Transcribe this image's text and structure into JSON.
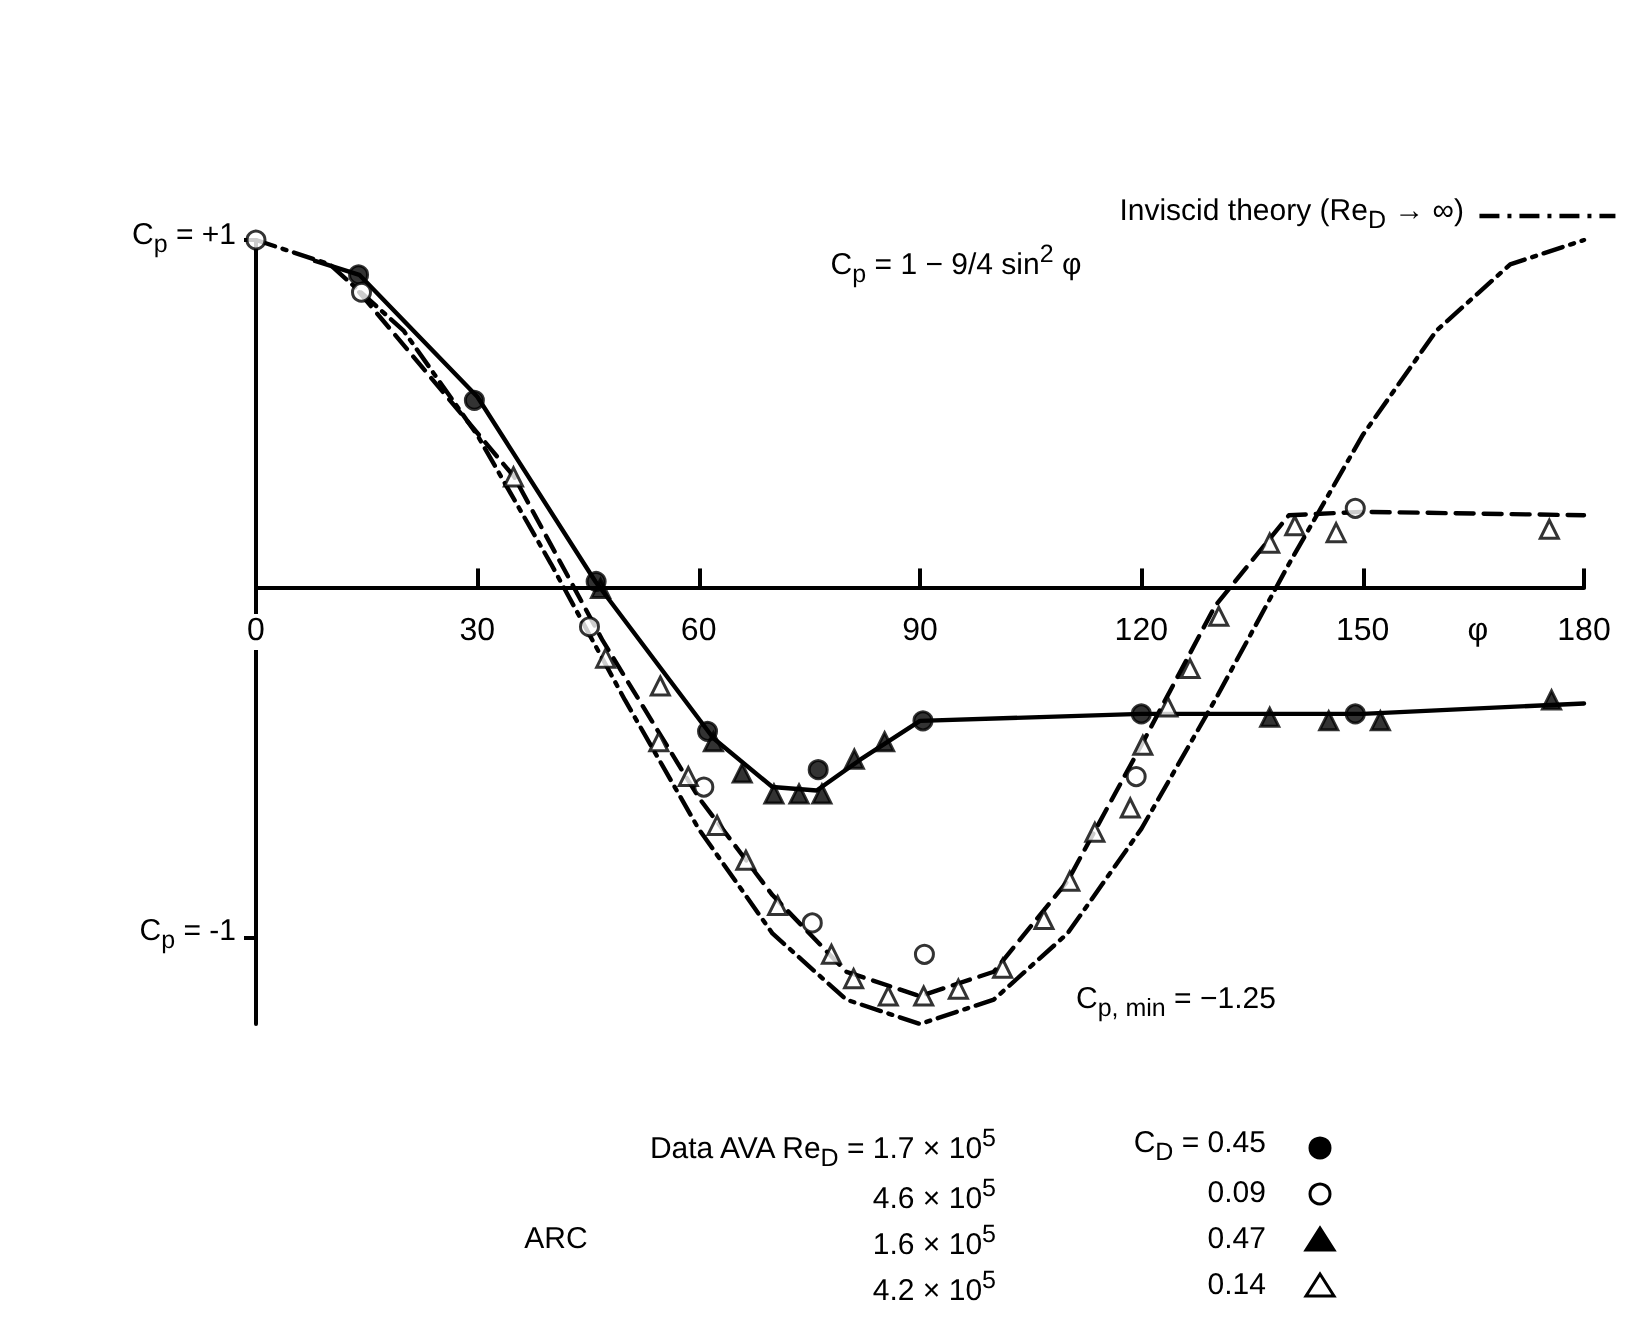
{
  "chart_data": {
    "type": "scatter",
    "xlabel": "φ",
    "xlim": [
      0,
      180
    ],
    "xticks": [
      0,
      30,
      60,
      90,
      120,
      150,
      180
    ],
    "ylim": [
      -1.25,
      1
    ],
    "yticks": [
      {
        "value": 1,
        "label": "C$_{p}$ = +1"
      },
      {
        "value": -1,
        "label": "C$_{p}$ = -1"
      }
    ],
    "grid": false,
    "legend": "bottom",
    "annotations": [
      "C$_{p}$ = 1 − 9/4 sin$^{2}$ φ",
      "C$_{p, min}$ = −1.25",
      "Data AVA Re$_{D}$ = 1.7 × 10$^{5}$",
      "4.6 × 10$^{5}$",
      "ARC",
      "1.6 × 10$^{5}$",
      "4.2 × 10$^{5}$"
    ],
    "series": [
      {
        "type": "line",
        "name": "Inviscid theory (Re$_{D}$ → ∞)",
        "color": "#000000",
        "line_style": "dashdot",
        "marker": "none",
        "x": [
          0,
          10,
          20,
          30,
          40,
          50,
          60,
          70,
          80,
          90,
          100,
          110,
          120,
          130,
          140,
          150,
          160,
          170,
          180
        ],
        "values": [
          1,
          0.93,
          0.74,
          0.44,
          0.07,
          -0.32,
          -0.69,
          -0.99,
          -1.18,
          -1.25,
          -1.18,
          -0.99,
          -0.69,
          -0.32,
          0.07,
          0.44,
          0.74,
          0.93,
          1
        ]
      },
      {
        "type": "line",
        "color": "#000000",
        "line_style": "solid",
        "marker": "none",
        "x": [
          8,
          14,
          30,
          46,
          62,
          70,
          76,
          82,
          90,
          120,
          150,
          180
        ],
        "values": [
          0.94,
          0.9,
          0.55,
          0.02,
          -0.43,
          -0.57,
          -0.58,
          -0.49,
          -0.38,
          -0.36,
          -0.36,
          -0.33
        ]
      },
      {
        "type": "line",
        "color": "#000000",
        "line_style": "dashed",
        "marker": "none",
        "x": [
          14,
          35,
          47,
          60,
          70,
          80,
          90,
          100,
          110,
          120,
          130,
          140,
          150,
          180
        ],
        "values": [
          0.85,
          0.32,
          -0.15,
          -0.6,
          -0.88,
          -1.1,
          -1.17,
          -1.1,
          -0.84,
          -0.45,
          -0.05,
          0.21,
          0.22,
          0.21
        ]
      },
      {
        "name": "C$_{D}$ = 0.45",
        "color": "#000000",
        "marker": "circle",
        "x": [
          13.9,
          29.6,
          46.1,
          61.2,
          76.2,
          90.4,
          120,
          149
        ],
        "values": [
          0.9,
          0.54,
          0.02,
          -0.41,
          -0.52,
          -0.38,
          -0.36,
          -0.36
        ]
      },
      {
        "name": "0.09",
        "color": "#ffffff",
        "marker": "circle",
        "x": [
          0,
          14.3,
          45.2,
          60.7,
          75.4,
          90.6,
          119.3,
          149
        ],
        "values": [
          1,
          0.85,
          -0.11,
          -0.57,
          -0.96,
          -1.05,
          -0.54,
          0.23
        ]
      },
      {
        "name": "0.47",
        "color": "#000000",
        "marker": "triangle",
        "x": [
          46.7,
          62,
          65.9,
          70.2,
          73.6,
          76.7,
          81.1,
          85.2,
          137.4,
          145.4,
          152.4,
          175.6
        ],
        "values": [
          0,
          -0.44,
          -0.53,
          -0.59,
          -0.59,
          -0.59,
          -0.49,
          -0.44,
          -0.37,
          -0.38,
          -0.38,
          -0.32
        ]
      },
      {
        "name": "0.14",
        "color": "#ffffff",
        "marker": "triangle",
        "x": [
          34.9,
          47.4,
          54.8,
          54.6,
          58.6,
          62.5,
          66.4,
          70.7,
          78,
          81,
          85.7,
          90.5,
          95.2,
          101.2,
          106.8,
          110.3,
          113.7,
          118.5,
          120.2,
          123.6,
          126.6,
          130.5,
          137.4,
          140.8,
          146.4,
          175.3
        ],
        "values": [
          0.32,
          -0.2,
          -0.28,
          -0.44,
          -0.54,
          -0.68,
          -0.78,
          -0.91,
          -1.05,
          -1.12,
          -1.17,
          -1.17,
          -1.15,
          -1.09,
          -0.95,
          -0.84,
          -0.7,
          -0.63,
          -0.45,
          -0.34,
          -0.23,
          -0.08,
          0.13,
          0.18,
          0.16,
          0.17
        ]
      }
    ]
  }
}
